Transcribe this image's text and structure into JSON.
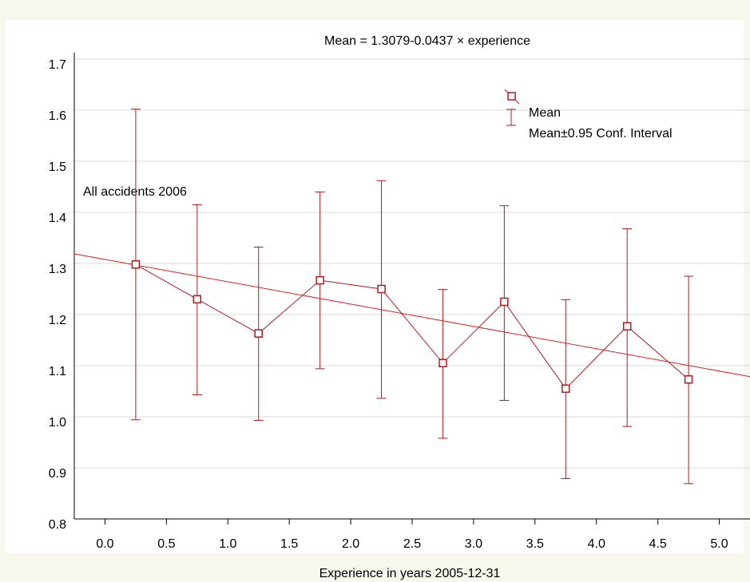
{
  "chart_data": {
    "type": "errorbar",
    "title": "Mean = 1.3079-0.0437 × experience",
    "x_label": "Experience in years 2005-12-31",
    "annotation": "All accidents 2006",
    "x": [
      0.25,
      0.75,
      1.25,
      1.75,
      2.25,
      2.75,
      3.25,
      3.75,
      4.25,
      4.75
    ],
    "series": [
      {
        "name": "Mean",
        "color": "#b01c1c",
        "values": [
          1.298,
          1.23,
          1.163,
          1.267,
          1.25,
          1.105,
          1.225,
          1.055,
          1.177,
          1.073
        ]
      }
    ],
    "errors": {
      "name": "Mean±0.95 Conf. Interval",
      "color": "#b01c1c",
      "lower": [
        0.994,
        1.043,
        0.993,
        1.094,
        1.036,
        0.958,
        1.032,
        0.879,
        0.981,
        0.869
      ],
      "upper": [
        1.602,
        1.415,
        1.332,
        1.44,
        1.462,
        1.249,
        1.413,
        1.229,
        1.368,
        1.275
      ]
    },
    "fit": {
      "intercept": 1.3079,
      "slope": -0.0437,
      "color": "#e02020"
    },
    "xlim": [
      -0.25,
      5.25
    ],
    "xticks": [
      {
        "value": 0,
        "label": "0.0"
      },
      0.5,
      {
        "value": 1,
        "label": "1.0"
      },
      1.5,
      {
        "value": 2,
        "label": "2.0"
      },
      2.5,
      {
        "value": 3,
        "label": "3.0"
      },
      3.5,
      {
        "value": 4,
        "label": "4.0"
      },
      4.5,
      {
        "value": 5,
        "label": "5.0"
      }
    ],
    "ylim": [
      0.8,
      1.7
    ],
    "yticks": [
      0.8,
      0.9,
      {
        "value": 1,
        "label": "1.0"
      },
      1.1,
      1.2,
      1.3,
      1.4,
      1.5,
      1.6,
      1.7
    ],
    "grid": true
  }
}
